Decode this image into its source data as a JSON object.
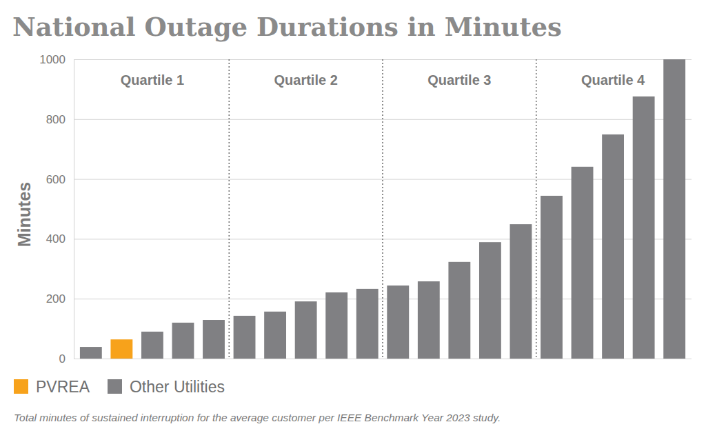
{
  "chart_data": {
    "type": "bar",
    "title": "National Outage Durations in Minutes",
    "y_label": "Minutes",
    "caption": "Total minutes of sustained interruption for the average customer per IEEE Benchmark Year 2023 study.",
    "annotations": [
      "Quartile 1",
      "Quartile 2",
      "Quartile 3",
      "Quartile 4"
    ],
    "categories": [
      null,
      null,
      null,
      null,
      null,
      null,
      null,
      null,
      null,
      null,
      null,
      null,
      null,
      null,
      null,
      null,
      null,
      null,
      null,
      null
    ],
    "series": [
      {
        "name": "PVREA",
        "color": "#f7a21b",
        "values": [
          null,
          64,
          null,
          null,
          null,
          null,
          null,
          null,
          null,
          null,
          null,
          null,
          null,
          null,
          null,
          null,
          null,
          null,
          null,
          null
        ]
      },
      {
        "name": "Other Utilities",
        "color": "#808083",
        "values": [
          39,
          null,
          90,
          120,
          129,
          143,
          157,
          191,
          221,
          233,
          244,
          258,
          323,
          389,
          449,
          544,
          641,
          749,
          876,
          1000
        ]
      }
    ],
    "ylim": [
      0,
      1000
    ],
    "yticks": [
      0,
      200,
      400,
      600,
      800,
      1000
    ],
    "grid": true,
    "legend": "bottom",
    "tick_labels": "y"
  }
}
